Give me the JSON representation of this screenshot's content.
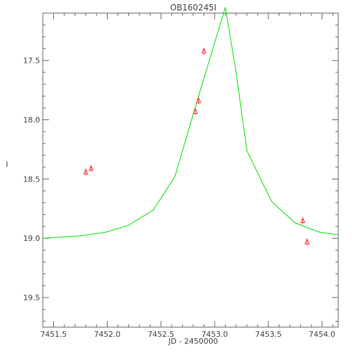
{
  "chart_data": {
    "type": "line",
    "title": "OB160245I",
    "xlabel": "JD - 2450000",
    "ylabel": "I",
    "xlim": [
      7451.4,
      7454.15
    ],
    "ylim": [
      19.75,
      17.1
    ],
    "y_inverted": true,
    "grid": false,
    "colors": {
      "axis": "#666666",
      "model": "#00e000",
      "points": "#ff3b3b"
    },
    "x_ticks": [
      "7451.5",
      "7452.0",
      "7452.5",
      "7453.0",
      "7453.5",
      "7454.0"
    ],
    "x_tick_values": [
      7451.5,
      7452.0,
      7452.5,
      7453.0,
      7453.5,
      7454.0
    ],
    "y_ticks": [
      "17.5",
      "18.0",
      "18.5",
      "19.0",
      "19.5"
    ],
    "y_tick_values": [
      17.5,
      18.0,
      18.5,
      19.0,
      19.5
    ],
    "model_curve": {
      "x": [
        7451.4,
        7451.75,
        7451.98,
        7452.2,
        7452.43,
        7452.63,
        7452.85,
        7453.0,
        7453.1,
        7453.2,
        7453.3,
        7453.53,
        7453.75,
        7453.98,
        7454.15
      ],
      "y": [
        19.0,
        18.98,
        18.95,
        18.89,
        18.76,
        18.48,
        17.8,
        17.35,
        17.05,
        17.6,
        18.26,
        18.69,
        18.87,
        18.95,
        18.97
      ]
    },
    "observations": {
      "x": [
        7451.8,
        7451.85,
        7452.82,
        7452.85,
        7452.9,
        7453.82,
        7453.86
      ],
      "y": [
        18.44,
        18.41,
        17.93,
        17.84,
        17.42,
        18.85,
        19.03
      ]
    }
  }
}
